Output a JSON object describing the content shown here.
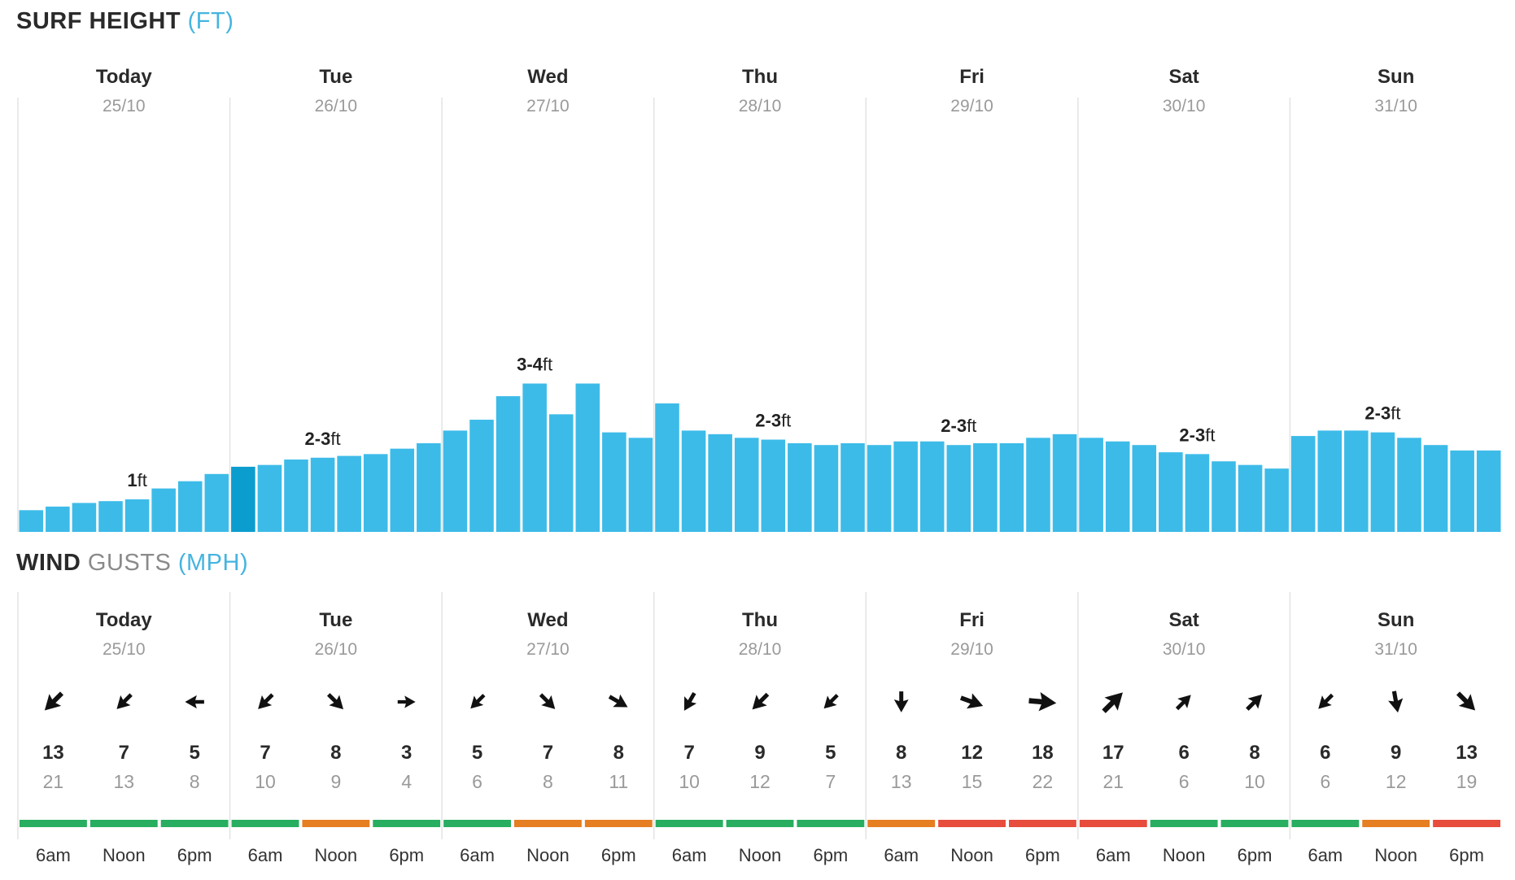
{
  "surf": {
    "title_main": "SURF HEIGHT",
    "title_unit": "(FT)"
  },
  "wind": {
    "title_main": "WIND",
    "title_sub": "GUSTS",
    "title_unit": "(MPH)"
  },
  "colors": {
    "bar": "#3dbbe8",
    "bar_current": "#0c9dcf",
    "unit_accent": "#45b4e0",
    "wind_ok": "#27ae60",
    "wind_moderate": "#e67e22",
    "wind_strong": "#e74c3c"
  },
  "chart_data": [
    {
      "type": "bar",
      "title": "SURF HEIGHT (FT)",
      "days": [
        {
          "day": "Today",
          "date": "25/10",
          "label_num": "1",
          "label_unit": "ft"
        },
        {
          "day": "Tue",
          "date": "26/10",
          "label_num": "2-3",
          "label_unit": "ft"
        },
        {
          "day": "Wed",
          "date": "27/10",
          "label_num": "3-4",
          "label_unit": "ft"
        },
        {
          "day": "Thu",
          "date": "28/10",
          "label_num": "2-3",
          "label_unit": "ft"
        },
        {
          "day": "Fri",
          "date": "29/10",
          "label_num": "2-3",
          "label_unit": "ft"
        },
        {
          "day": "Sat",
          "date": "30/10",
          "label_num": "2-3",
          "label_unit": "ft"
        },
        {
          "day": "Sun",
          "date": "31/10",
          "label_num": "2-3",
          "label_unit": "ft"
        }
      ],
      "values": [
        [
          0.6,
          0.7,
          0.8,
          0.85,
          0.9,
          1.2,
          1.4,
          1.6
        ],
        [
          1.8,
          1.85,
          2.0,
          2.05,
          2.1,
          2.15,
          2.3,
          2.45
        ],
        [
          2.8,
          3.1,
          3.75,
          4.1,
          3.25,
          4.1,
          2.75,
          2.6
        ],
        [
          3.55,
          2.8,
          2.7,
          2.6,
          2.55,
          2.45,
          2.4,
          2.45
        ],
        [
          2.4,
          2.5,
          2.5,
          2.4,
          2.45,
          2.45,
          2.6,
          2.7
        ],
        [
          2.6,
          2.5,
          2.4,
          2.2,
          2.15,
          1.95,
          1.85,
          1.75
        ],
        [
          2.65,
          2.8,
          2.8,
          2.75,
          2.6,
          2.4,
          2.25,
          2.25
        ]
      ],
      "current_bar": [
        1,
        0
      ],
      "label_bar": [
        4,
        3,
        3,
        4,
        3,
        4,
        3
      ],
      "ylim": [
        0,
        12
      ]
    },
    {
      "type": "table",
      "title": "WIND GUSTS (MPH)",
      "days": [
        {
          "day": "Today",
          "date": "25/10"
        },
        {
          "day": "Tue",
          "date": "26/10"
        },
        {
          "day": "Wed",
          "date": "27/10"
        },
        {
          "day": "Thu",
          "date": "28/10"
        },
        {
          "day": "Fri",
          "date": "29/10"
        },
        {
          "day": "Sat",
          "date": "30/10"
        },
        {
          "day": "Sun",
          "date": "31/10"
        }
      ],
      "times": [
        "6am",
        "Noon",
        "6pm"
      ],
      "wind": [
        [
          13,
          7,
          5
        ],
        [
          7,
          8,
          3
        ],
        [
          5,
          7,
          8
        ],
        [
          7,
          9,
          5
        ],
        [
          8,
          12,
          18
        ],
        [
          17,
          6,
          8
        ],
        [
          6,
          9,
          13
        ]
      ],
      "gusts": [
        [
          21,
          13,
          8
        ],
        [
          10,
          9,
          4
        ],
        [
          6,
          8,
          11
        ],
        [
          10,
          12,
          7
        ],
        [
          13,
          15,
          22
        ],
        [
          21,
          6,
          10
        ],
        [
          6,
          12,
          19
        ]
      ],
      "direction_deg": [
        [
          225,
          225,
          270
        ],
        [
          225,
          135,
          90
        ],
        [
          225,
          135,
          120
        ],
        [
          210,
          225,
          225
        ],
        [
          180,
          110,
          95
        ],
        [
          45,
          45,
          45
        ],
        [
          225,
          170,
          135
        ]
      ],
      "rating": [
        [
          "wind_ok",
          "wind_ok",
          "wind_ok"
        ],
        [
          "wind_ok",
          "wind_moderate",
          "wind_ok"
        ],
        [
          "wind_ok",
          "wind_moderate",
          "wind_moderate"
        ],
        [
          "wind_ok",
          "wind_ok",
          "wind_ok"
        ],
        [
          "wind_moderate",
          "wind_strong",
          "wind_strong"
        ],
        [
          "wind_strong",
          "wind_ok",
          "wind_ok"
        ],
        [
          "wind_ok",
          "wind_moderate",
          "wind_strong"
        ]
      ]
    }
  ]
}
